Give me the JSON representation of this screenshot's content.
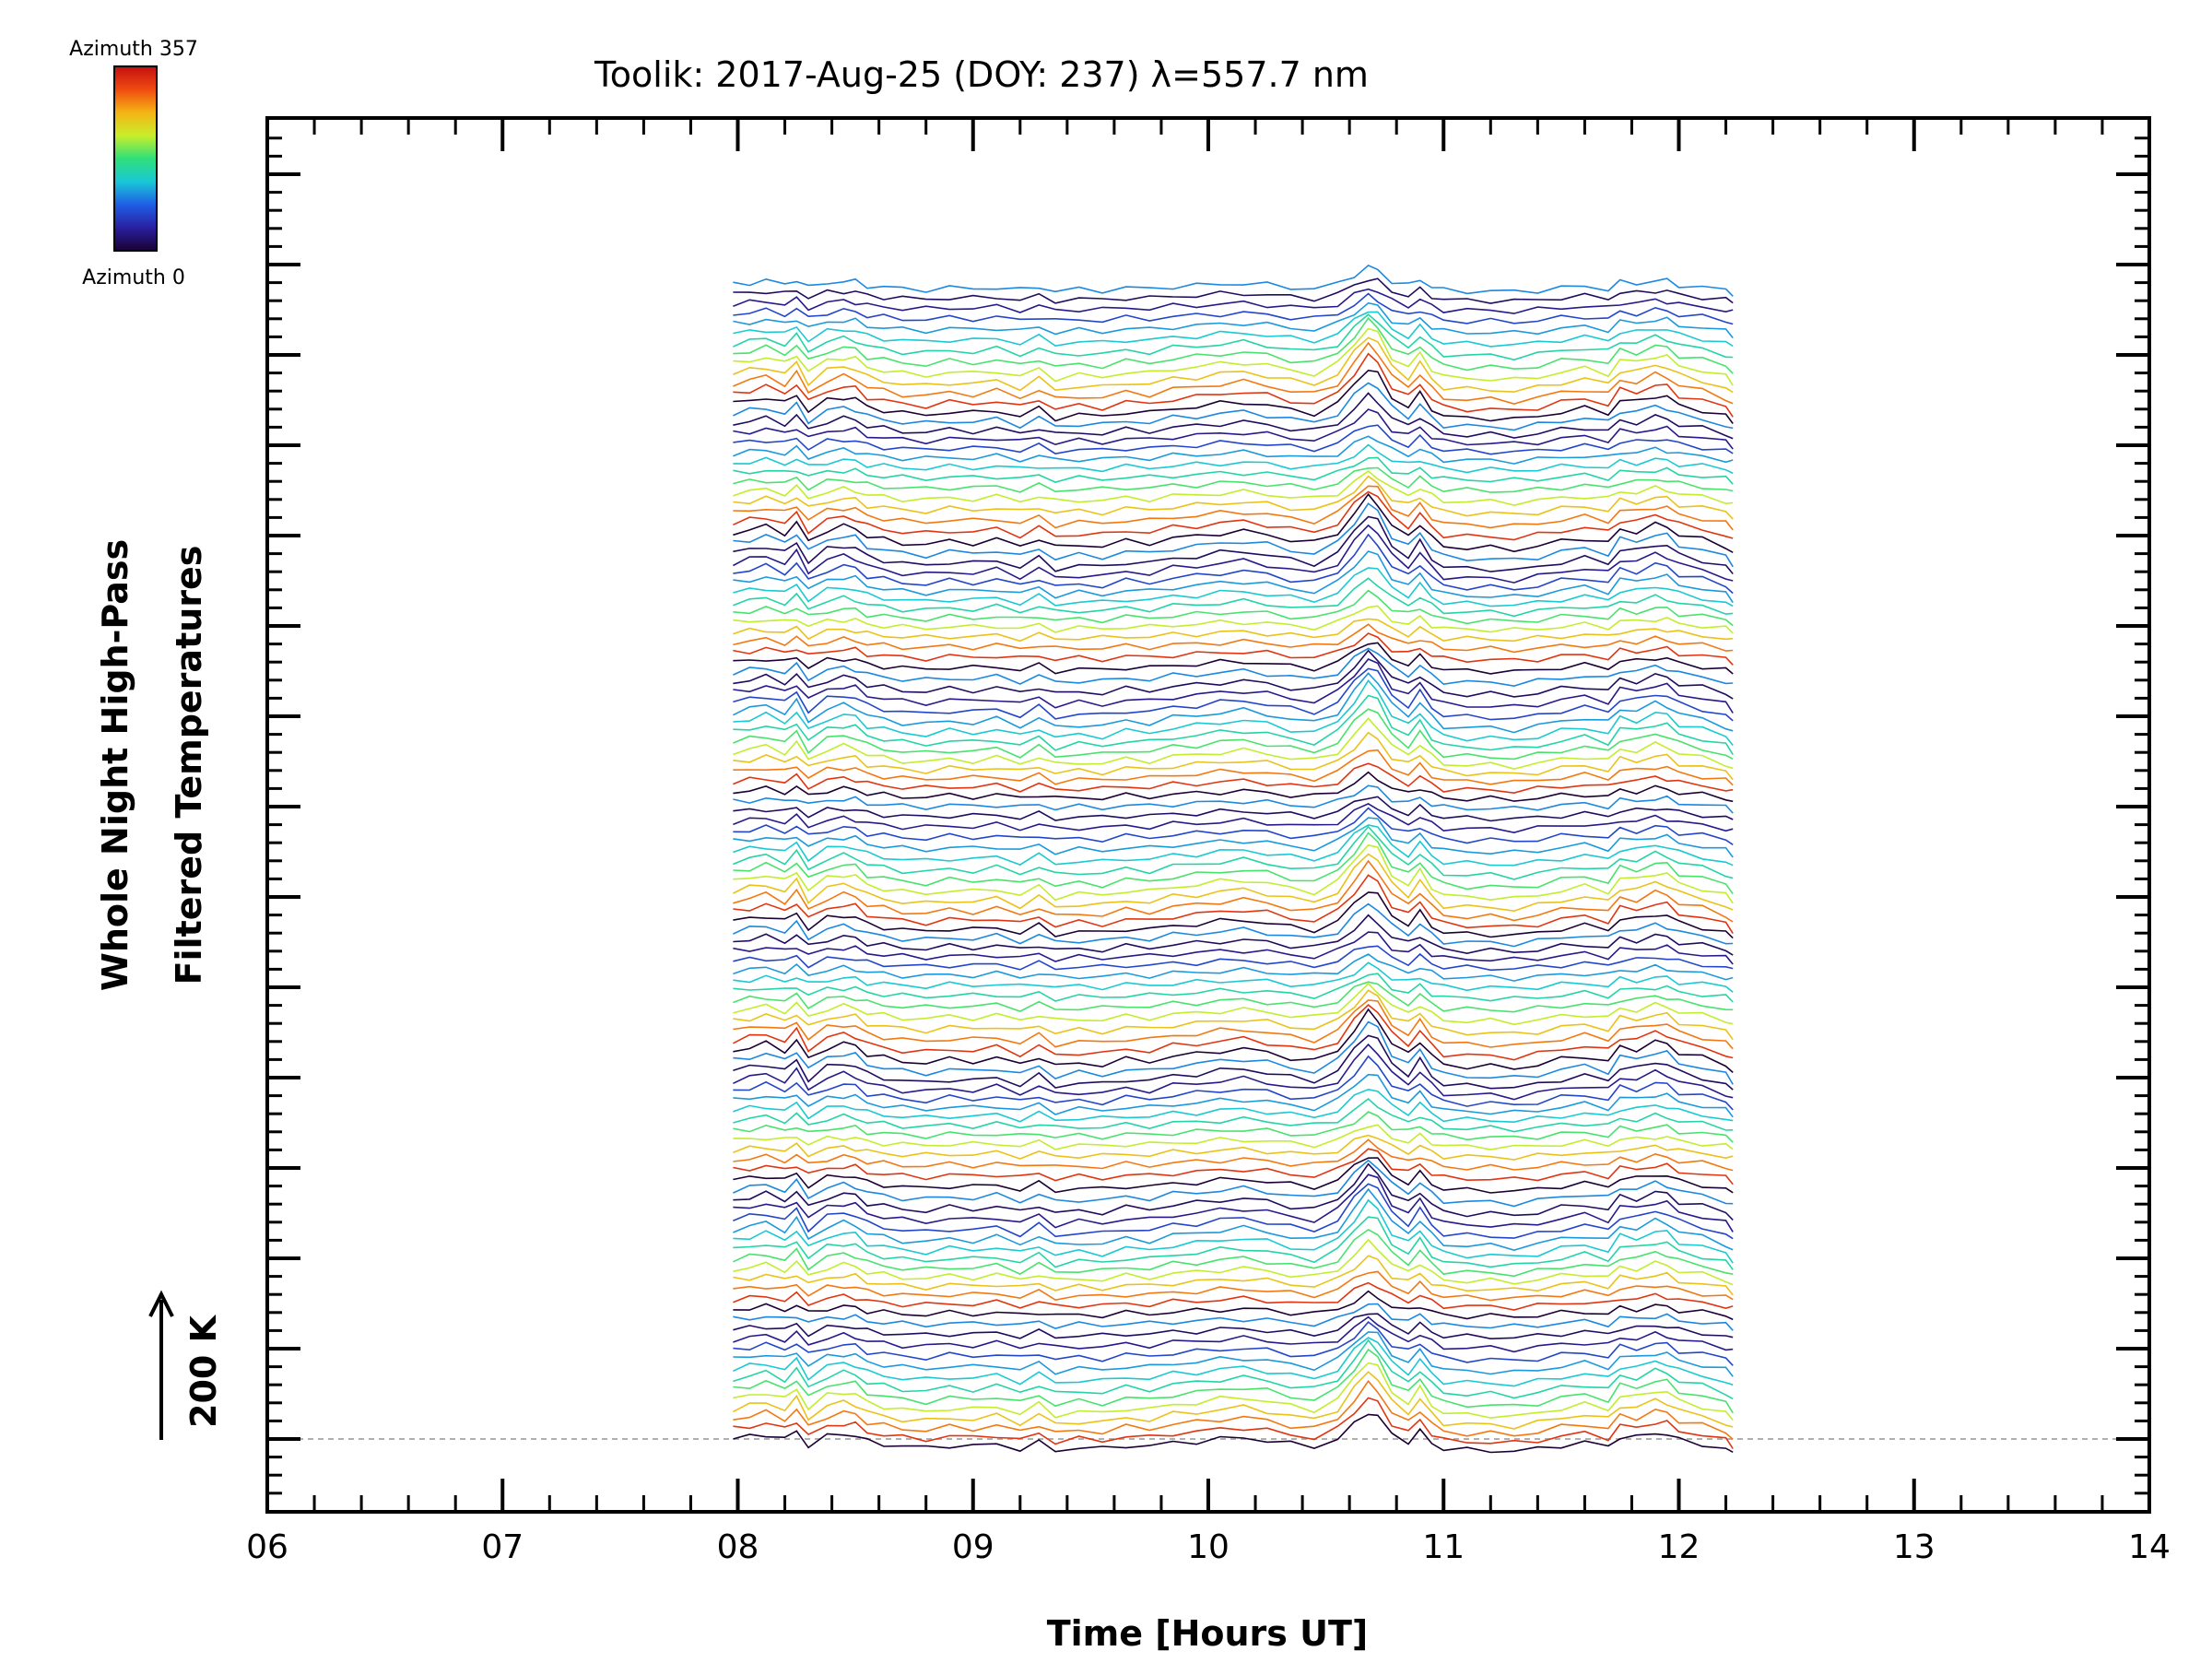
{
  "chart_data": {
    "type": "line",
    "title": "Toolik: 2017-Aug-25 (DOY: 237) λ=557.7 nm",
    "xlabel": "Time [Hours UT]",
    "ylabel_line1": "Whole Night High-Pass",
    "ylabel_line2": "Filtered Temperatures",
    "scale_label": "200 K",
    "xlim": [
      6,
      14
    ],
    "xticks": [
      "06",
      "07",
      "08",
      "09",
      "10",
      "11",
      "12",
      "13",
      "14"
    ],
    "y_major_ticks": 15,
    "colorbar": {
      "top_label": "Azimuth 357",
      "bottom_label": "Azimuth 0",
      "colormap": [
        "#1a0033",
        "#2a1fa0",
        "#1e5ee6",
        "#19c8d6",
        "#2fe07a",
        "#c9ee2a",
        "#f5b414",
        "#f04a10",
        "#c40f0f"
      ]
    },
    "series_count": 117,
    "time_range": [
      7.98,
      12.23
    ],
    "profile_shape": {
      "x": [
        7.98,
        8.05,
        8.12,
        8.2,
        8.25,
        8.3,
        8.38,
        8.45,
        8.5,
        8.55,
        8.62,
        8.7,
        8.8,
        8.9,
        9.0,
        9.1,
        9.2,
        9.28,
        9.35,
        9.45,
        9.55,
        9.65,
        9.75,
        9.85,
        9.95,
        10.05,
        10.15,
        10.25,
        10.35,
        10.45,
        10.55,
        10.62,
        10.68,
        10.72,
        10.78,
        10.85,
        10.9,
        10.95,
        11.0,
        11.1,
        11.2,
        11.3,
        11.4,
        11.5,
        11.6,
        11.7,
        11.75,
        11.82,
        11.9,
        11.95,
        12.0,
        12.1,
        12.2,
        12.23
      ],
      "offset_K": [
        0,
        2,
        4,
        0,
        6,
        -5,
        2,
        4,
        3,
        -2,
        -4,
        -6,
        -7,
        -5,
        -6,
        -4,
        -8,
        -3,
        -9,
        -7,
        -8,
        -5,
        -6,
        -3,
        -2,
        0,
        1,
        -1,
        -4,
        -6,
        0,
        12,
        22,
        18,
        4,
        -2,
        6,
        -3,
        -8,
        -9,
        -9,
        -10,
        -8,
        -5,
        -3,
        -6,
        2,
        1,
        5,
        4,
        -1,
        -4,
        -8,
        -12
      ]
    }
  }
}
